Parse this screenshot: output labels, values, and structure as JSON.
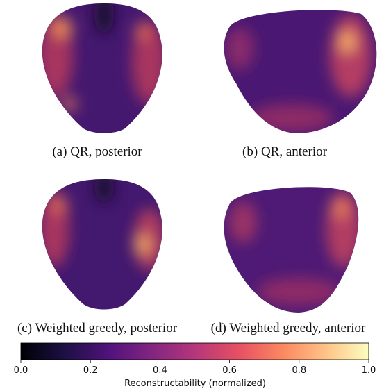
{
  "figure": {
    "panels": [
      {
        "caption": "(a) QR, posterior"
      },
      {
        "caption": "(b) QR, anterior"
      },
      {
        "caption": "(c) Weighted greedy, posterior"
      },
      {
        "caption": "(d) Weighted greedy, anterior"
      }
    ],
    "colorbar": {
      "label": "Reconstructability (normalized)",
      "lim": [
        0,
        1
      ],
      "ticks": [
        {
          "value": 0,
          "label": "0.0"
        },
        0.2,
        0.4,
        0.6,
        0.8,
        {
          "value": 1,
          "label": "1.0"
        }
      ],
      "colors": [
        "#000004",
        "#1c1044",
        "#4f127b",
        "#812581",
        "#b5367a",
        "#e55064",
        "#fb8761",
        "#fec287",
        "#fcfdbf"
      ]
    }
  }
}
